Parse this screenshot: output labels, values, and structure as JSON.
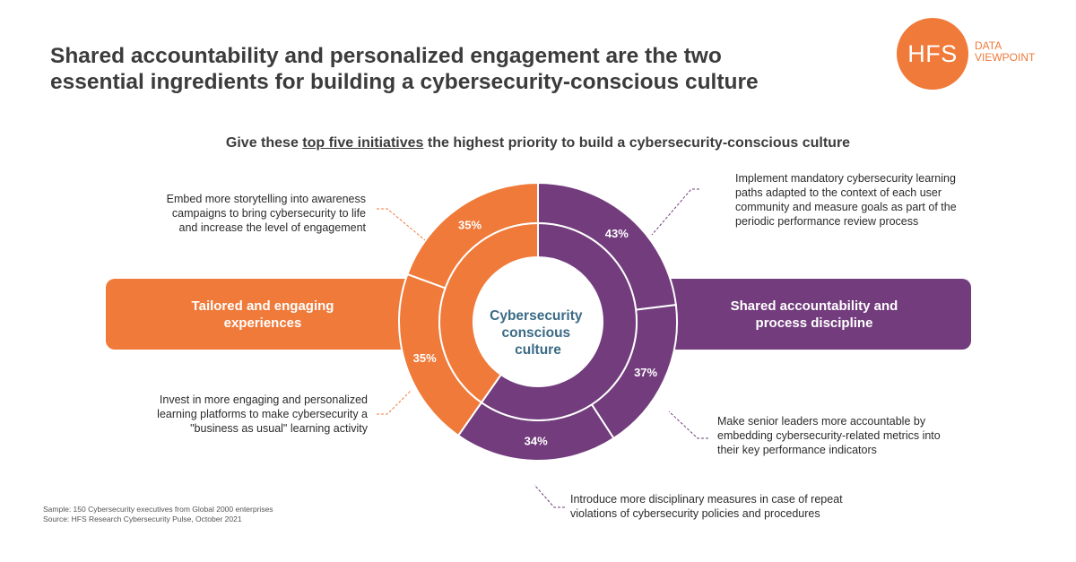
{
  "header": {
    "title_line1": "Shared accountability and personalized engagement are the two",
    "title_line2": "essential ingredients for building a cybersecurity-conscious culture",
    "logo_text": "HFS",
    "logo_sub_line1": "DATA",
    "logo_sub_line2": "VIEWPOINT"
  },
  "subtitle": {
    "prefix": "Give these ",
    "emphasis": "top five initiatives",
    "suffix": " the highest priority to build a cybersecurity-conscious culture"
  },
  "banners": {
    "left_line1": "Tailored and engaging",
    "left_line2": "experiences",
    "right_line1": "Shared accountability and",
    "right_line2": "process discipline"
  },
  "center": {
    "line1": "Cybersecurity",
    "line2": "conscious",
    "line3": "culture"
  },
  "colors": {
    "orange": "#ef7a3a",
    "purple": "#723c7d",
    "center_text": "#3b6b86"
  },
  "notes": {
    "storytelling": [
      "Embed more storytelling into awareness",
      "campaigns to bring cybersecurity to life",
      "and increase the level of engagement"
    ],
    "learning_paths": [
      "Implement mandatory cybersecurity learning",
      "paths adapted to the context of each user",
      "community and measure goals as part of the",
      "periodic performance review process"
    ],
    "platforms": [
      "Invest in more engaging and personalized",
      "learning platforms to make cybersecurity a",
      "\"business as usual\" learning activity"
    ],
    "leaders": [
      "Make senior leaders more accountable by",
      "embedding cybersecurity-related metrics into",
      "their key performance indicators"
    ],
    "disciplinary": [
      "Introduce more disciplinary measures in case of repeat",
      "violations of cybersecurity policies and procedures"
    ]
  },
  "source": {
    "line1": "Sample: 150 Cybersecurity executives from Global 2000 enterprises",
    "line2": "Source: HFS Research Cybersecurity Pulse, October 2021"
  },
  "chart_data": {
    "type": "pie",
    "inner_ring": [
      {
        "group": "Tailored and engaging experiences",
        "color": "#ef7a3a"
      },
      {
        "group": "Shared accountability and process discipline",
        "color": "#723c7d"
      }
    ],
    "categories": [
      "Implement mandatory cybersecurity learning paths adapted to the context of each user community and measure goals as part of the periodic performance review process",
      "Make senior leaders more accountable by embedding cybersecurity-related metrics into their key performance indicators",
      "Introduce more disciplinary measures in case of repeat violations of cybersecurity policies and procedures",
      "Invest in more engaging and personalized learning platforms to make cybersecurity a \"business as usual\" learning activity",
      "Embed more storytelling into awareness campaigns to bring cybersecurity to life and increase the level of engagement"
    ],
    "values": [
      43,
      37,
      34,
      35,
      35
    ],
    "labels": [
      "43%",
      "37%",
      "34%",
      "35%",
      "35%"
    ],
    "groups": [
      "Shared accountability and process discipline",
      "Shared accountability and process discipline",
      "Shared accountability and process discipline",
      "Tailored and engaging experiences",
      "Tailored and engaging experiences"
    ],
    "colors": [
      "#723c7d",
      "#723c7d",
      "#723c7d",
      "#ef7a3a",
      "#ef7a3a"
    ]
  }
}
